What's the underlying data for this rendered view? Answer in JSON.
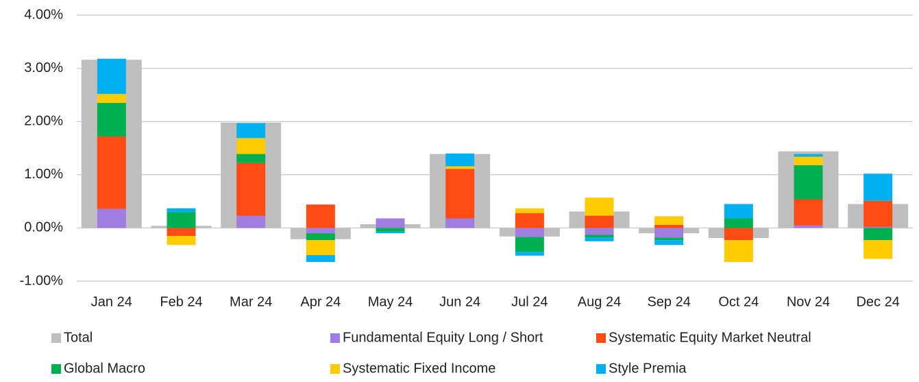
{
  "chart_data": {
    "type": "bar",
    "categories": [
      "Jan 24",
      "Feb 24",
      "Mar 24",
      "Apr 24",
      "May 24",
      "Jun 24",
      "Jul 24",
      "Aug 24",
      "Sep 24",
      "Oct 24",
      "Nov 24",
      "Dec 24"
    ],
    "series": [
      {
        "name": "Total",
        "color": "#bfbfbf",
        "values": [
          3.16,
          0.04,
          1.98,
          -0.21,
          0.07,
          1.39,
          -0.16,
          0.31,
          -0.1,
          -0.19,
          1.44,
          0.45
        ]
      },
      {
        "name": "Fundamental Equity Long / Short",
        "color": "#a07de0",
        "values": [
          0.36,
          0.0,
          0.23,
          -0.1,
          0.18,
          0.18,
          -0.17,
          -0.13,
          -0.18,
          0.0,
          0.05,
          0.02
        ]
      },
      {
        "name": "Systematic Equity Market Neutral",
        "color": "#ff4a14",
        "values": [
          1.36,
          -0.15,
          0.99,
          0.44,
          0.0,
          0.93,
          0.28,
          0.23,
          0.06,
          -0.23,
          0.49,
          0.49
        ]
      },
      {
        "name": "Global Macro",
        "color": "#00b050",
        "values": [
          0.63,
          0.3,
          0.17,
          -0.13,
          -0.07,
          0.0,
          -0.28,
          -0.05,
          -0.05,
          0.18,
          0.64,
          -0.23
        ]
      },
      {
        "name": "Systematic Fixed Income",
        "color": "#ffcc00",
        "values": [
          0.17,
          -0.17,
          0.3,
          -0.28,
          0.0,
          0.05,
          0.09,
          0.34,
          0.16,
          -0.41,
          0.16,
          -0.35
        ]
      },
      {
        "name": "Style Premia",
        "color": "#00b0f0",
        "values": [
          0.66,
          0.07,
          0.28,
          -0.13,
          -0.03,
          0.24,
          -0.07,
          -0.07,
          -0.09,
          0.27,
          0.05,
          0.51
        ]
      }
    ],
    "ylim": [
      -1,
      4
    ],
    "yticks": [
      {
        "value": -1,
        "label": "-1.00%"
      },
      {
        "value": 0,
        "label": "0.00%"
      },
      {
        "value": 1,
        "label": "1.00%"
      },
      {
        "value": 2,
        "label": "2.00%"
      },
      {
        "value": 3,
        "label": "3.00%"
      },
      {
        "value": 4,
        "label": "4.00%"
      }
    ],
    "grid": true,
    "legend": "bottom"
  }
}
